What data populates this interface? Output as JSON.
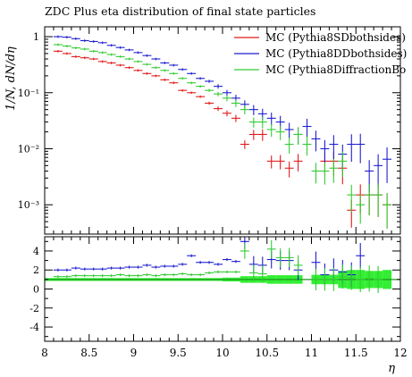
{
  "chart_data": [
    {
      "type": "line",
      "title": "ZDC Plus eta distribution of final state particles",
      "ylabel": "1/N, dN/dη",
      "xlabel": "η",
      "yscale": "log",
      "ylim": [
        0.0003,
        1.5
      ],
      "xlim": [
        8,
        12
      ],
      "xticks": [
        "8",
        "8.5",
        "9",
        "9.5",
        "10",
        "10.5",
        "11",
        "11.5",
        "12"
      ],
      "yticks": [
        "1",
        "10⁻¹",
        "10⁻²",
        "10⁻³"
      ],
      "legend_position": "top-right",
      "series": [
        {
          "name": "MC (Pythia8SDbothsides)",
          "color": "#e31a1c",
          "points": [
            [
              8.15,
              0.55
            ],
            [
              8.25,
              0.5
            ],
            [
              8.35,
              0.44
            ],
            [
              8.45,
              0.42
            ],
            [
              8.55,
              0.4
            ],
            [
              8.65,
              0.36
            ],
            [
              8.75,
              0.34
            ],
            [
              8.85,
              0.31
            ],
            [
              8.95,
              0.28
            ],
            [
              9.05,
              0.25
            ],
            [
              9.15,
              0.22
            ],
            [
              9.25,
              0.2
            ],
            [
              9.35,
              0.17
            ],
            [
              9.45,
              0.15
            ],
            [
              9.55,
              0.11
            ],
            [
              9.65,
              0.1
            ],
            [
              9.75,
              0.085
            ],
            [
              9.85,
              0.065
            ],
            [
              9.95,
              0.052
            ],
            [
              10.05,
              0.043
            ],
            [
              10.15,
              0.035
            ],
            [
              10.25,
              0.012
            ],
            [
              10.35,
              0.018
            ],
            [
              10.45,
              0.018
            ],
            [
              10.55,
              0.006
            ],
            [
              10.65,
              0.006
            ],
            [
              10.75,
              0.0045
            ],
            [
              10.85,
              0.006
            ],
            [
              11.15,
              0.006
            ],
            [
              11.25,
              0.006
            ],
            [
              11.35,
              0.0045
            ],
            [
              11.45,
              0.0008
            ],
            [
              11.55,
              0.0015
            ],
            [
              11.65,
              0.0015
            ],
            [
              11.75,
              0.0015
            ],
            [
              11.85,
              0.001
            ]
          ]
        },
        {
          "name": "MC (Pythia8DDbothsides)",
          "color": "#1f1fd1",
          "points": [
            [
              8.15,
              1.0
            ],
            [
              8.25,
              0.98
            ],
            [
              8.35,
              0.92
            ],
            [
              8.45,
              0.85
            ],
            [
              8.55,
              0.82
            ],
            [
              8.65,
              0.78
            ],
            [
              8.75,
              0.7
            ],
            [
              8.85,
              0.64
            ],
            [
              8.95,
              0.58
            ],
            [
              9.05,
              0.52
            ],
            [
              9.15,
              0.46
            ],
            [
              9.25,
              0.4
            ],
            [
              9.35,
              0.34
            ],
            [
              9.45,
              0.31
            ],
            [
              9.55,
              0.26
            ],
            [
              9.65,
              0.22
            ],
            [
              9.75,
              0.18
            ],
            [
              9.85,
              0.16
            ],
            [
              9.95,
              0.13
            ],
            [
              10.05,
              0.1
            ],
            [
              10.15,
              0.08
            ],
            [
              10.25,
              0.062
            ],
            [
              10.35,
              0.05
            ],
            [
              10.45,
              0.042
            ],
            [
              10.55,
              0.035
            ],
            [
              10.65,
              0.03
            ],
            [
              10.75,
              0.022
            ],
            [
              10.85,
              0.018
            ],
            [
              10.95,
              0.025
            ],
            [
              11.05,
              0.015
            ],
            [
              11.15,
              0.01
            ],
            [
              11.25,
              0.012
            ],
            [
              11.35,
              0.008
            ],
            [
              11.45,
              0.012
            ],
            [
              11.55,
              0.012
            ],
            [
              11.65,
              0.004
            ],
            [
              11.75,
              0.005
            ],
            [
              11.85,
              0.0065
            ]
          ]
        },
        {
          "name": "MC (Pythia8DiffractionBo",
          "color": "#33cc33",
          "points": [
            [
              8.15,
              0.72
            ],
            [
              8.25,
              0.68
            ],
            [
              8.35,
              0.63
            ],
            [
              8.45,
              0.6
            ],
            [
              8.55,
              0.55
            ],
            [
              8.65,
              0.52
            ],
            [
              8.75,
              0.48
            ],
            [
              8.85,
              0.44
            ],
            [
              8.95,
              0.4
            ],
            [
              9.05,
              0.36
            ],
            [
              9.15,
              0.32
            ],
            [
              9.25,
              0.28
            ],
            [
              9.35,
              0.25
            ],
            [
              9.45,
              0.22
            ],
            [
              9.55,
              0.18
            ],
            [
              9.65,
              0.15
            ],
            [
              9.75,
              0.13
            ],
            [
              9.85,
              0.11
            ],
            [
              9.95,
              0.095
            ],
            [
              10.05,
              0.08
            ],
            [
              10.15,
              0.065
            ],
            [
              10.25,
              0.05
            ],
            [
              10.35,
              0.03
            ],
            [
              10.45,
              0.03
            ],
            [
              10.55,
              0.022
            ],
            [
              10.65,
              0.02
            ],
            [
              10.75,
              0.012
            ],
            [
              10.85,
              0.018
            ],
            [
              10.95,
              0.012
            ],
            [
              11.05,
              0.004
            ],
            [
              11.15,
              0.004
            ],
            [
              11.25,
              0.0045
            ],
            [
              11.35,
              0.006
            ],
            [
              11.45,
              0.0015
            ],
            [
              11.55,
              0.001
            ],
            [
              11.65,
              0.0015
            ],
            [
              11.75,
              0.0015
            ],
            [
              11.85,
              0.001
            ]
          ]
        }
      ]
    },
    {
      "type": "line",
      "xlabel": "η",
      "ylim": [
        -5.5,
        5.5
      ],
      "xlim": [
        8,
        12
      ],
      "yticks": [
        "4",
        "2",
        "0",
        "-2",
        "-4"
      ],
      "xticks": [
        "8",
        "8.5",
        "9",
        "9.5",
        "10",
        "10.5",
        "11",
        "11.5",
        "12"
      ],
      "reference_line": 1,
      "band_color": "#33ee33",
      "band": [
        [
          8.05,
          1.0,
          0.15
        ],
        [
          8.15,
          1.0,
          0.15
        ],
        [
          8.25,
          1.0,
          0.15
        ],
        [
          8.35,
          1.0,
          0.15
        ],
        [
          8.45,
          1.0,
          0.15
        ],
        [
          8.55,
          1.0,
          0.15
        ],
        [
          8.65,
          1.0,
          0.15
        ],
        [
          8.75,
          1.0,
          0.15
        ],
        [
          8.85,
          1.0,
          0.15
        ],
        [
          8.95,
          1.0,
          0.15
        ],
        [
          9.05,
          1.0,
          0.15
        ],
        [
          9.15,
          1.0,
          0.15
        ],
        [
          9.25,
          1.0,
          0.15
        ],
        [
          9.35,
          1.0,
          0.15
        ],
        [
          9.45,
          1.0,
          0.15
        ],
        [
          9.55,
          1.0,
          0.15
        ],
        [
          9.65,
          1.0,
          0.15
        ],
        [
          9.75,
          1.0,
          0.15
        ],
        [
          9.85,
          1.0,
          0.15
        ],
        [
          9.95,
          1.0,
          0.15
        ],
        [
          10.05,
          1.0,
          0.2
        ],
        [
          10.15,
          1.0,
          0.2
        ],
        [
          10.25,
          1.0,
          0.35
        ],
        [
          10.35,
          1.0,
          0.35
        ],
        [
          10.45,
          1.0,
          0.35
        ],
        [
          10.55,
          1.0,
          0.45
        ],
        [
          10.65,
          1.0,
          0.45
        ],
        [
          10.75,
          1.0,
          0.45
        ],
        [
          10.85,
          1.0,
          0.45
        ],
        [
          11.05,
          1.0,
          0.5
        ],
        [
          11.15,
          1.0,
          0.5
        ],
        [
          11.25,
          1.0,
          0.5
        ],
        [
          11.35,
          1.0,
          0.9
        ],
        [
          11.45,
          1.0,
          1.0
        ],
        [
          11.55,
          1.0,
          1.0
        ],
        [
          11.65,
          1.0,
          0.9
        ],
        [
          11.75,
          1.0,
          0.9
        ],
        [
          11.85,
          1.0,
          1.0
        ]
      ],
      "series": [
        {
          "name": "MC (Pythia8DDbothsides)",
          "color": "#1f1fd1",
          "points": [
            [
              8.15,
              2.0
            ],
            [
              8.25,
              2.0
            ],
            [
              8.35,
              2.2
            ],
            [
              8.45,
              2.1
            ],
            [
              8.55,
              2.1
            ],
            [
              8.65,
              2.1
            ],
            [
              8.75,
              2.2
            ],
            [
              8.85,
              2.2
            ],
            [
              8.95,
              2.3
            ],
            [
              9.05,
              2.3
            ],
            [
              9.15,
              2.5
            ],
            [
              9.25,
              2.3
            ],
            [
              9.35,
              2.4
            ],
            [
              9.45,
              2.4
            ],
            [
              9.55,
              2.6
            ],
            [
              9.65,
              3.5
            ],
            [
              9.75,
              2.8
            ],
            [
              9.85,
              2.8
            ],
            [
              9.95,
              2.6
            ],
            [
              10.05,
              3.1
            ],
            [
              10.15,
              2.9
            ],
            [
              10.25,
              5.0
            ],
            [
              10.35,
              2.6
            ],
            [
              10.45,
              2.5
            ],
            [
              10.55,
              3.1
            ],
            [
              10.65,
              3.0
            ],
            [
              10.75,
              3.0
            ],
            [
              10.85,
              2.0
            ],
            [
              11.05,
              2.8
            ],
            [
              11.15,
              1.5
            ],
            [
              11.25,
              2.0
            ],
            [
              11.35,
              1.8
            ],
            [
              11.45,
              1.5
            ],
            [
              11.55,
              3.5
            ]
          ]
        },
        {
          "name": "MC (Pythia8DiffractionBo",
          "color": "#33cc33",
          "points": [
            [
              8.15,
              1.3
            ],
            [
              8.25,
              1.3
            ],
            [
              8.35,
              1.4
            ],
            [
              8.45,
              1.4
            ],
            [
              8.55,
              1.4
            ],
            [
              8.65,
              1.4
            ],
            [
              8.75,
              1.4
            ],
            [
              8.85,
              1.5
            ],
            [
              8.95,
              1.4
            ],
            [
              9.05,
              1.4
            ],
            [
              9.15,
              1.5
            ],
            [
              9.25,
              1.4
            ],
            [
              9.35,
              1.5
            ],
            [
              9.45,
              1.5
            ],
            [
              9.55,
              1.6
            ],
            [
              9.65,
              1.5
            ],
            [
              9.75,
              1.5
            ],
            [
              9.85,
              1.7
            ],
            [
              9.95,
              1.8
            ],
            [
              10.05,
              1.8
            ],
            [
              10.15,
              1.8
            ],
            [
              10.25,
              4.0
            ],
            [
              10.35,
              1.7
            ],
            [
              10.45,
              1.6
            ],
            [
              10.55,
              4.2
            ],
            [
              10.65,
              3.3
            ],
            [
              10.75,
              3.3
            ],
            [
              10.85,
              2.5
            ],
            [
              11.05,
              1.0
            ],
            [
              11.15,
              1.0
            ],
            [
              11.25,
              1.0
            ],
            [
              11.35,
              1.3
            ],
            [
              11.45,
              1.2
            ],
            [
              11.55,
              1.0
            ],
            [
              11.65,
              1.1
            ],
            [
              11.75,
              1.0
            ]
          ]
        }
      ]
    }
  ]
}
